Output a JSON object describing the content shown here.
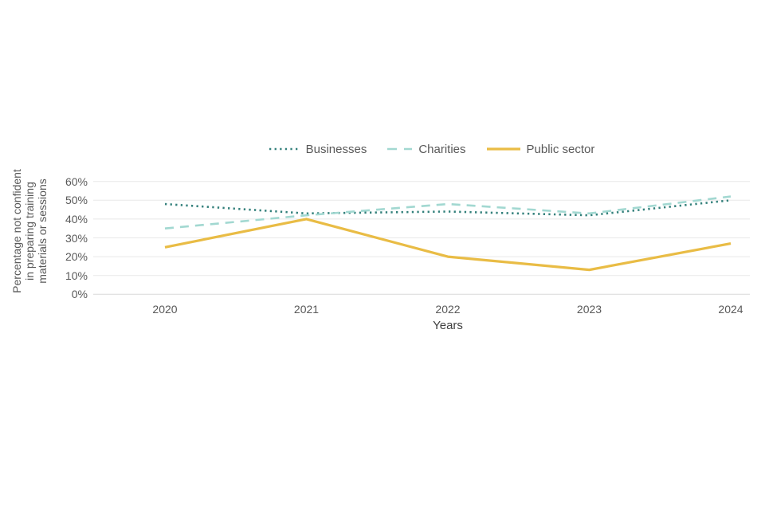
{
  "page": {
    "background_color": "#ffffff"
  },
  "chart_data": {
    "type": "line",
    "title": "",
    "xlabel": "Years",
    "ylabel": "Percentage not confident in preparing training materials or sessions",
    "ylabel_lines": [
      "Percentage not confident",
      "in preparing training",
      "materials or sessions"
    ],
    "categories": [
      "2020",
      "2021",
      "2022",
      "2023",
      "2024"
    ],
    "y_ticks": [
      "0%",
      "10%",
      "20%",
      "30%",
      "40%",
      "50%",
      "60%"
    ],
    "ylim": [
      0,
      60
    ],
    "grid": "horizontal-only",
    "legend_position": "top-center",
    "axis_color": "#d9d9d9",
    "gridline_color": "#e8e8e8",
    "series": [
      {
        "name": "Businesses",
        "style": "dotted",
        "color": "#33807b",
        "values": [
          48,
          43,
          44,
          42,
          50
        ]
      },
      {
        "name": "Charities",
        "style": "dashed",
        "color": "#a2d8d1",
        "values": [
          35,
          42,
          48,
          43,
          52
        ]
      },
      {
        "name": "Public sector",
        "style": "solid",
        "color": "#e9bc45",
        "values": [
          25,
          40,
          20,
          13,
          27
        ]
      }
    ]
  }
}
